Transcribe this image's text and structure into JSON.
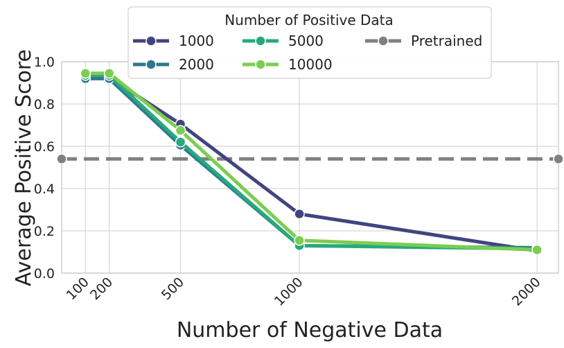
{
  "chart_data": {
    "type": "line",
    "title": "",
    "xlabel": "Number of Negative Data",
    "ylabel": "Average Positive Score",
    "x": [
      100,
      200,
      500,
      1000,
      2000
    ],
    "x_tick_labels": [
      "100",
      "200",
      "500",
      "1000",
      "2000"
    ],
    "xlim": [
      0,
      2090
    ],
    "ylim": [
      0,
      1.0
    ],
    "y_ticks": [
      0.0,
      0.2,
      0.4,
      0.6,
      0.8,
      1.0
    ],
    "y_tick_labels": [
      "0.0",
      "0.2",
      "0.4",
      "0.6",
      "0.8",
      "1.0"
    ],
    "grid": true,
    "legend": {
      "title": "Number of Positive Data",
      "placement": "top-center"
    },
    "series": [
      {
        "name": "1000",
        "color": "#40457f",
        "values": [
          0.925,
          0.925,
          0.705,
          0.28,
          0.105
        ]
      },
      {
        "name": "2000",
        "color": "#2e7a8c",
        "values": [
          0.92,
          0.92,
          0.605,
          0.13,
          0.12
        ]
      },
      {
        "name": "5000",
        "color": "#27a97c",
        "values": [
          0.935,
          0.935,
          0.62,
          0.13,
          0.115
        ]
      },
      {
        "name": "10000",
        "color": "#7ccd52",
        "values": [
          0.945,
          0.945,
          0.675,
          0.155,
          0.11
        ]
      }
    ],
    "reference_lines": [
      {
        "name": "Pretrained",
        "color": "#808080",
        "value": 0.54,
        "style": "dashed"
      }
    ]
  }
}
